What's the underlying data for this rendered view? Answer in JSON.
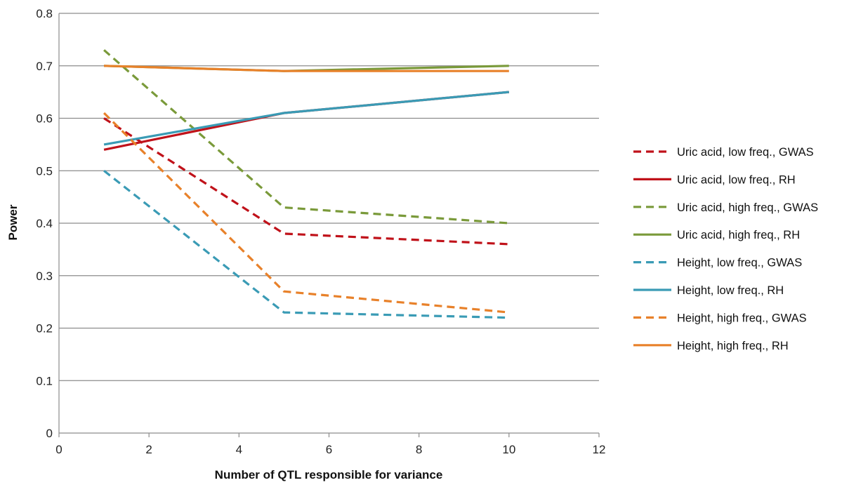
{
  "chart_data": {
    "type": "line",
    "title": "",
    "xlabel": "Number of QTL responsible for variance",
    "ylabel": "Power",
    "xlim": [
      0,
      12
    ],
    "ylim": [
      0,
      0.8
    ],
    "xticks": [
      0,
      2,
      4,
      6,
      8,
      10,
      12
    ],
    "yticks": [
      0,
      0.1,
      0.2,
      0.3,
      0.4,
      0.5,
      0.6,
      0.7,
      0.8
    ],
    "ytick_labels": [
      "0",
      "0.1",
      "0.2",
      "0.3",
      "0.4",
      "0.5",
      "0.6",
      "0.7",
      "0.8"
    ],
    "grid": "horizontal",
    "legend_position": "right",
    "x": [
      1,
      5,
      10
    ],
    "series": [
      {
        "name": "Uric acid, low freq., GWAS",
        "values": [
          0.6,
          0.38,
          0.36
        ],
        "color": "#C0121A",
        "dash": true
      },
      {
        "name": "Uric acid, low freq., RH",
        "values": [
          0.54,
          0.61,
          0.65
        ],
        "color": "#C0121A",
        "dash": false
      },
      {
        "name": "Uric acid, high freq., GWAS",
        "values": [
          0.73,
          0.43,
          0.4
        ],
        "color": "#7A9A3A",
        "dash": true
      },
      {
        "name": "Uric acid, high freq., RH",
        "values": [
          0.7,
          0.69,
          0.7
        ],
        "color": "#7A9A3A",
        "dash": false
      },
      {
        "name": "Height, low freq., GWAS",
        "values": [
          0.5,
          0.23,
          0.22
        ],
        "color": "#3A9BB5",
        "dash": true
      },
      {
        "name": "Height, low freq., RH",
        "values": [
          0.55,
          0.61,
          0.65
        ],
        "color": "#3A9BB5",
        "dash": false
      },
      {
        "name": "Height, high freq., GWAS",
        "values": [
          0.61,
          0.27,
          0.23
        ],
        "color": "#E8812A",
        "dash": true
      },
      {
        "name": "Height, high freq., RH",
        "values": [
          0.7,
          0.69,
          0.69
        ],
        "color": "#E8812A",
        "dash": false
      }
    ]
  }
}
